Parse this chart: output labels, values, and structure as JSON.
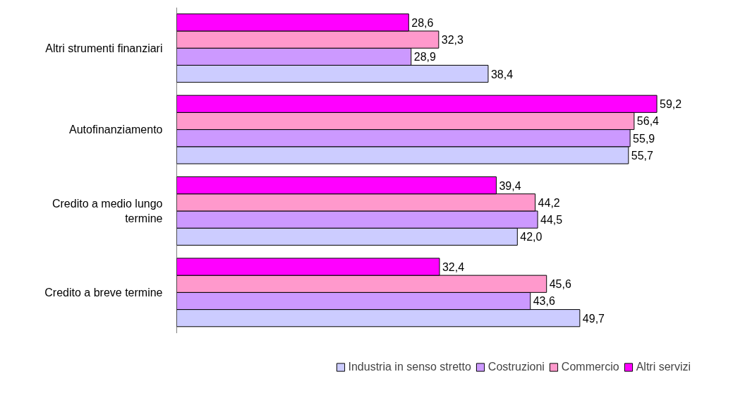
{
  "chart_data": {
    "type": "bar",
    "orientation": "horizontal",
    "categories": [
      "Altri strumenti finanziari",
      "Autofinanziamento",
      "Credito a medio lungo termine",
      "Credito a breve termine"
    ],
    "series": [
      {
        "name": "Industria in senso stretto",
        "color": "#ccccff",
        "values": [
          38.4,
          55.7,
          42.0,
          49.7
        ],
        "value_labels": [
          "38,4",
          "55,7",
          "42,0",
          "49,7"
        ]
      },
      {
        "name": "Costruzioni",
        "color": "#cc99ff",
        "values": [
          28.9,
          55.9,
          44.5,
          43.6
        ],
        "value_labels": [
          "28,9",
          "55,9",
          "44,5",
          "43,6"
        ]
      },
      {
        "name": "Commercio",
        "color": "#ff99cc",
        "values": [
          32.3,
          56.4,
          44.2,
          45.6
        ],
        "value_labels": [
          "32,3",
          "56,4",
          "44,2",
          "45,6"
        ]
      },
      {
        "name": "Altri servizi",
        "color": "#ff00ff",
        "values": [
          28.6,
          59.2,
          39.4,
          32.4
        ],
        "value_labels": [
          "28,6",
          "59,2",
          "39,4",
          "32,4"
        ]
      }
    ],
    "grid": false,
    "legend": "bottom right"
  }
}
